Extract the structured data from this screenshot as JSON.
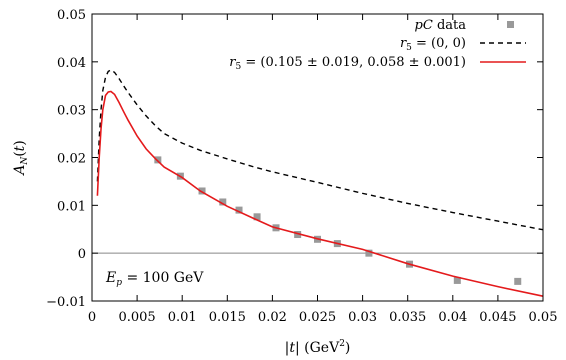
{
  "chart_data": {
    "type": "line",
    "xlabel": "|t| (GeV²)",
    "ylabel": "A_N(t)",
    "xlim": [
      0,
      0.05
    ],
    "ylim": [
      -0.01,
      0.05
    ],
    "xticks": [
      0,
      0.005,
      0.01,
      0.015,
      0.02,
      0.025,
      0.03,
      0.035,
      0.04,
      0.045,
      0.05
    ],
    "xtick_labels": [
      "0",
      "0.005",
      "0.01",
      "0.015",
      "0.02",
      "0.025",
      "0.03",
      "0.035",
      "0.04",
      "0.045",
      "0.05"
    ],
    "yticks": [
      -0.01,
      0,
      0.01,
      0.02,
      0.03,
      0.04,
      0.05
    ],
    "ytick_labels": [
      "−0.01",
      "0",
      "0.01",
      "0.02",
      "0.03",
      "0.04",
      "0.05"
    ],
    "annotation": "E_p = 100 GeV",
    "legend_position": "top-right",
    "colors": {
      "data": "#999999",
      "dashed": "#000000",
      "fit": "#e41a1c",
      "zero_line": "#888888"
    },
    "series": [
      {
        "name": "pC data",
        "style": "markers",
        "x": [
          0.0073,
          0.0098,
          0.0122,
          0.0145,
          0.0163,
          0.0183,
          0.0204,
          0.0228,
          0.025,
          0.0272,
          0.0307,
          0.0352,
          0.0405,
          0.0472
        ],
        "y": [
          0.0195,
          0.0161,
          0.013,
          0.0107,
          0.009,
          0.0076,
          0.0053,
          0.0039,
          0.0029,
          0.002,
          0.0,
          -0.0023,
          -0.0057,
          -0.0059
        ]
      },
      {
        "name": "r_5 = (0, 0)",
        "style": "dashed",
        "x": [
          0.0006,
          0.0008,
          0.001,
          0.0012,
          0.0015,
          0.0018,
          0.0021,
          0.0025,
          0.003,
          0.0035,
          0.004,
          0.005,
          0.006,
          0.007,
          0.008,
          0.01,
          0.012,
          0.015,
          0.018,
          0.02,
          0.025,
          0.03,
          0.035,
          0.04,
          0.045,
          0.05
        ],
        "y": [
          0.015,
          0.024,
          0.03,
          0.034,
          0.0368,
          0.038,
          0.0383,
          0.0378,
          0.0365,
          0.035,
          0.0336,
          0.031,
          0.0287,
          0.0267,
          0.025,
          0.023,
          0.0215,
          0.0197,
          0.018,
          0.017,
          0.0148,
          0.0125,
          0.0104,
          0.0085,
          0.0067,
          0.0049
        ]
      },
      {
        "name": "r_5 = (0.105 ± 0.019, 0.058 ± 0.001)",
        "style": "solid",
        "x": [
          0.0006,
          0.0008,
          0.001,
          0.0012,
          0.0015,
          0.0018,
          0.0021,
          0.0025,
          0.003,
          0.0035,
          0.004,
          0.005,
          0.006,
          0.007,
          0.008,
          0.01,
          0.012,
          0.015,
          0.018,
          0.02,
          0.025,
          0.03,
          0.035,
          0.04,
          0.045,
          0.05
        ],
        "y": [
          0.012,
          0.02,
          0.026,
          0.03,
          0.033,
          0.0337,
          0.0338,
          0.0332,
          0.0315,
          0.0296,
          0.0278,
          0.0245,
          0.0218,
          0.0198,
          0.018,
          0.0158,
          0.013,
          0.0098,
          0.0072,
          0.0055,
          0.003,
          0.0008,
          -0.0022,
          -0.0048,
          -0.007,
          -0.009
        ]
      }
    ]
  }
}
